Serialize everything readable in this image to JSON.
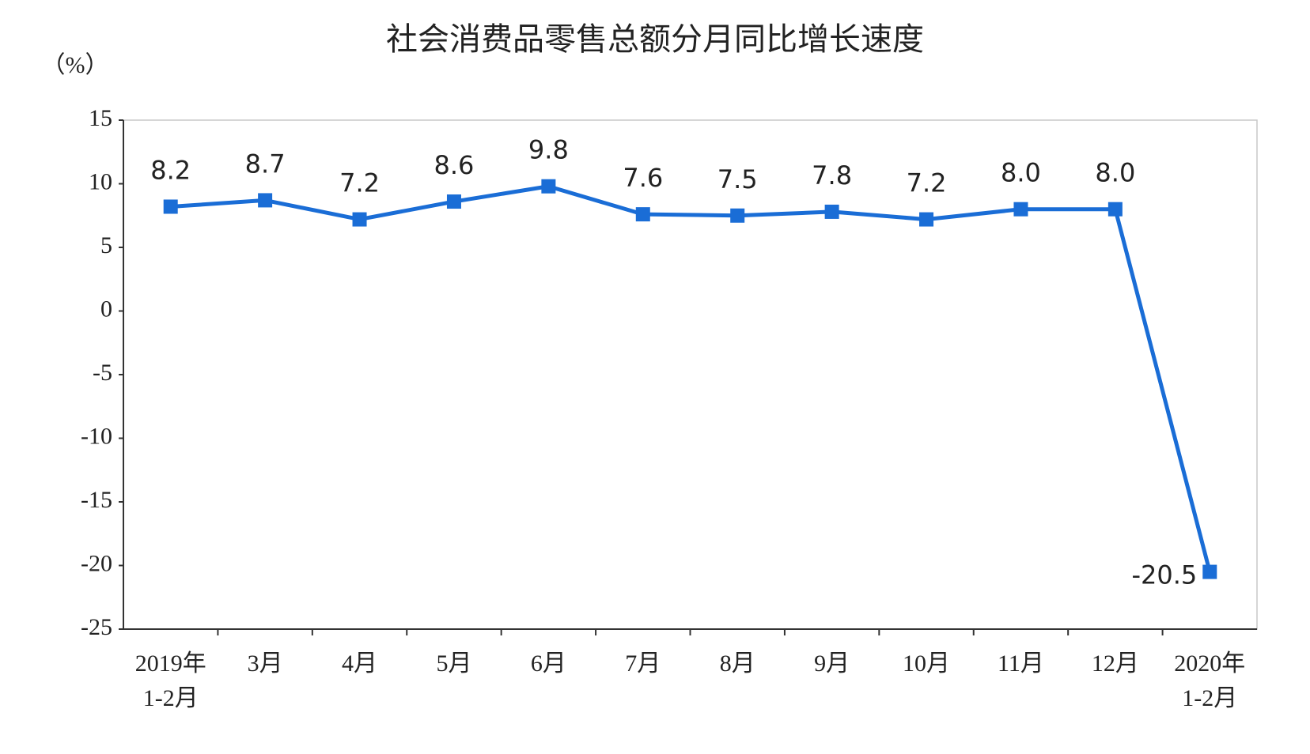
{
  "chart_data": {
    "type": "line",
    "title": "社会消费品零售总额分月同比增长速度",
    "y_label": "（%）",
    "categories": [
      "2019年\n1-2月",
      "3月",
      "4月",
      "5月",
      "6月",
      "7月",
      "8月",
      "9月",
      "10月",
      "11月",
      "12月",
      "2020年\n1-2月"
    ],
    "series": [
      {
        "name": "同比增长",
        "color": "#1a6dd6",
        "values": [
          8.2,
          8.7,
          7.2,
          8.6,
          9.8,
          7.6,
          7.5,
          7.8,
          7.2,
          8.0,
          8.0,
          -20.5
        ],
        "value_labels": [
          "8.2",
          "8.7",
          "7.2",
          "8.6",
          "9.8",
          "7.6",
          "7.5",
          "7.8",
          "7.2",
          "8.0",
          "8.0",
          "-20.5"
        ]
      }
    ],
    "ylim": [
      -25,
      15
    ],
    "yticks": [
      -25,
      -20,
      -15,
      -10,
      -5,
      0,
      5,
      10,
      15
    ],
    "grid": false
  }
}
